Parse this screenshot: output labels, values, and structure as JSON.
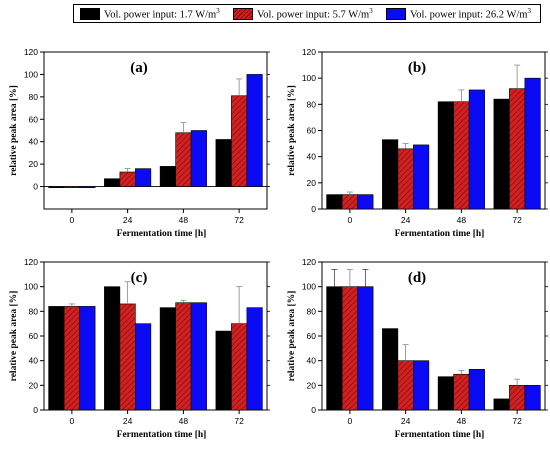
{
  "legend": {
    "items": [
      {
        "label_prefix": "Vol. power input: 1.7 W/m",
        "superscript": "3",
        "color": "#000000",
        "pattern": "solid"
      },
      {
        "label_prefix": "Vol. power input: 5.7 W/m",
        "superscript": "3",
        "color": "#d42020",
        "pattern": "hatch"
      },
      {
        "label_prefix": "Vol. power input: 26.2 W/m",
        "superscript": "3",
        "color": "#0a0af5",
        "pattern": "solid"
      }
    ]
  },
  "chart_data": [
    {
      "type": "bar",
      "panel_label": "(a)",
      "xlabel": "Fermentation time [h]",
      "ylabel": "relative peak area [%]",
      "categories": [
        "0",
        "24",
        "48",
        "72"
      ],
      "ylim": [
        -20,
        120
      ],
      "yticks": [
        0,
        20,
        40,
        60,
        80,
        100,
        120
      ],
      "series": [
        {
          "values": [
            -1,
            7,
            18,
            42
          ],
          "errors": [
            0,
            0,
            0,
            0
          ]
        },
        {
          "values": [
            -1,
            13,
            48,
            81
          ],
          "errors": [
            0,
            3,
            9,
            15
          ]
        },
        {
          "values": [
            -1,
            16,
            50,
            100
          ],
          "errors": [
            0,
            0,
            0,
            0
          ]
        }
      ]
    },
    {
      "type": "bar",
      "panel_label": "(b)",
      "xlabel": "Fermentation time [h]",
      "ylabel": "relative peak area [%]",
      "categories": [
        "0",
        "24",
        "48",
        "72"
      ],
      "ylim": [
        0,
        120
      ],
      "yticks": [
        0,
        20,
        40,
        60,
        80,
        100,
        120
      ],
      "series": [
        {
          "values": [
            11,
            53,
            82,
            84
          ],
          "errors": [
            0,
            0,
            0,
            0
          ]
        },
        {
          "values": [
            11,
            46,
            82,
            92
          ],
          "errors": [
            2,
            4,
            9,
            18
          ]
        },
        {
          "values": [
            11,
            49,
            91,
            100
          ],
          "errors": [
            0,
            0,
            0,
            0
          ]
        }
      ]
    },
    {
      "type": "bar",
      "panel_label": "(c)",
      "xlabel": "Fermentation time [h]",
      "ylabel": "relative peak area [%]",
      "categories": [
        "0",
        "24",
        "48",
        "72"
      ],
      "ylim": [
        0,
        120
      ],
      "yticks": [
        0,
        20,
        40,
        60,
        80,
        100,
        120
      ],
      "series": [
        {
          "values": [
            84,
            100,
            83,
            64
          ],
          "errors": [
            0,
            0,
            0,
            0
          ]
        },
        {
          "values": [
            84,
            86,
            87,
            70
          ],
          "errors": [
            2,
            18,
            2,
            30
          ]
        },
        {
          "values": [
            84,
            70,
            87,
            83
          ],
          "errors": [
            0,
            0,
            0,
            0
          ]
        }
      ]
    },
    {
      "type": "bar",
      "panel_label": "(d)",
      "xlabel": "Fermentation time [h]",
      "ylabel": "relative peak area [%]",
      "categories": [
        "0",
        "24",
        "48",
        "72"
      ],
      "ylim": [
        0,
        120
      ],
      "yticks": [
        0,
        20,
        40,
        60,
        80,
        100,
        120
      ],
      "series": [
        {
          "values": [
            100,
            66,
            27,
            9
          ],
          "errors": [
            14,
            0,
            0,
            0
          ]
        },
        {
          "values": [
            100,
            40,
            29,
            20
          ],
          "errors": [
            14,
            13,
            3,
            5
          ]
        },
        {
          "values": [
            100,
            40,
            33,
            20
          ],
          "errors": [
            14,
            0,
            0,
            0
          ]
        }
      ]
    }
  ]
}
